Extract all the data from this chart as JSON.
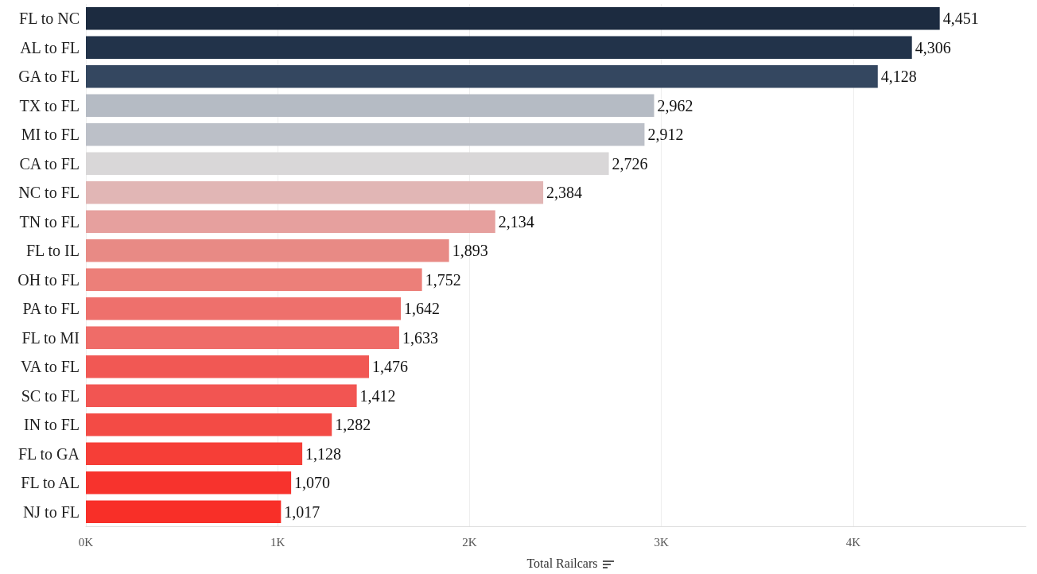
{
  "chart_data": {
    "type": "bar",
    "orientation": "horizontal",
    "xlabel": "Total Railcars",
    "categories": [
      "FL to NC",
      "AL to FL",
      "GA to FL",
      "TX to FL",
      "MI to FL",
      "CA to FL",
      "NC to FL",
      "TN to FL",
      "FL to IL",
      "OH to FL",
      "PA to FL",
      "FL to MI",
      "VA to FL",
      "SC to FL",
      "IN to FL",
      "FL to GA",
      "FL to AL",
      "NJ to FL"
    ],
    "values": [
      4451,
      4306,
      4128,
      2962,
      2912,
      2726,
      2384,
      2134,
      1893,
      1752,
      1642,
      1633,
      1476,
      1412,
      1282,
      1128,
      1070,
      1017
    ],
    "colors": [
      "#1c2b40",
      "#22334a",
      "#344760",
      "#b5bbc4",
      "#bcc0c8",
      "#d9d7d8",
      "#e1b6b5",
      "#e6a09e",
      "#e88a85",
      "#ec7f79",
      "#ee706c",
      "#ef6c68",
      "#f15854",
      "#f25552",
      "#f34b45",
      "#f63e37",
      "#f7332d",
      "#f82f28"
    ],
    "xlim": [
      0,
      4900
    ],
    "xticks": [
      {
        "value": 0,
        "label": "0K"
      },
      {
        "value": 1000,
        "label": "1K"
      },
      {
        "value": 2000,
        "label": "2K"
      },
      {
        "value": 3000,
        "label": "3K"
      },
      {
        "value": 4000,
        "label": "4K"
      }
    ],
    "value_labels": [
      "4,451",
      "4,306",
      "4,128",
      "2,962",
      "2,912",
      "2,726",
      "2,384",
      "2,134",
      "1,893",
      "1,752",
      "1,642",
      "1,633",
      "1,476",
      "1,412",
      "1,282",
      "1,128",
      "1,070",
      "1,017"
    ],
    "grid": "x"
  }
}
